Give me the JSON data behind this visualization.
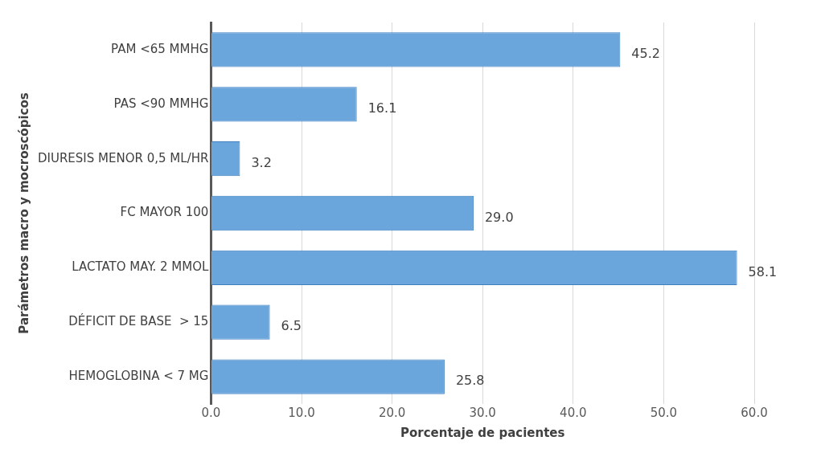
{
  "chart_data": {
    "type": "bar",
    "orientation": "horizontal",
    "categories": [
      "PAM <65 MMHG",
      "PAS <90 MMHG",
      "DIURESIS MENOR 0,5 ML/HR",
      "FC MAYOR 100",
      "LACTATO MAY. 2 MMOL",
      "DÉFICIT DE BASE  > 15",
      "HEMOGLOBINA < 7 MG"
    ],
    "values": [
      45.2,
      16.1,
      3.2,
      29.0,
      58.1,
      6.5,
      25.8
    ],
    "value_labels": [
      "45.2",
      "16.1",
      "3.2",
      "29.0",
      "58.1",
      "6.5",
      "25.8"
    ],
    "color": "#6aa6dc",
    "xlim": [
      0,
      60
    ],
    "xticks": [
      {
        "value": 0,
        "label": "0.0"
      },
      {
        "value": 10,
        "label": "10.0"
      },
      {
        "value": 20,
        "label": "20.0"
      },
      {
        "value": 30,
        "label": "30.0"
      },
      {
        "value": 40,
        "label": "40.0"
      },
      {
        "value": 50,
        "label": "50.0"
      },
      {
        "value": 60,
        "label": "60.0"
      }
    ],
    "xlabel": "Porcentaje de pacientes",
    "ylabel": "Parámetros macro y mocroscópicos",
    "grid": "x",
    "legend": false
  }
}
